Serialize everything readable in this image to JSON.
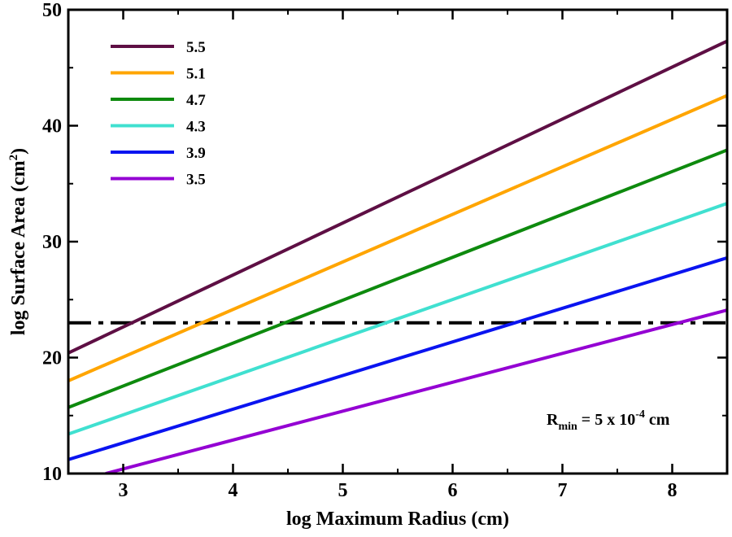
{
  "chart_data": {
    "type": "line",
    "xlabel": "log Maximum Radius (cm)",
    "ylabel_main": "log Surface Area (cm",
    "ylabel_sup": "2",
    "ylabel_close": ")",
    "xlim": [
      2.5,
      8.5
    ],
    "ylim": [
      10,
      50
    ],
    "xticks": [
      3,
      4,
      5,
      6,
      7,
      8
    ],
    "yticks": [
      10,
      20,
      30,
      40,
      50
    ],
    "grid": false,
    "legend_position": "top-left",
    "series": [
      {
        "name": "5.5",
        "color": "#5e0f44",
        "points": [
          [
            2.5,
            20.4
          ],
          [
            8.5,
            47.3
          ]
        ]
      },
      {
        "name": "5.1",
        "color": "#ffa500",
        "points": [
          [
            2.5,
            18.0
          ],
          [
            8.5,
            42.6
          ]
        ]
      },
      {
        "name": "4.7",
        "color": "#0e8a0e",
        "points": [
          [
            2.5,
            15.7
          ],
          [
            8.5,
            37.9
          ]
        ]
      },
      {
        "name": "4.3",
        "color": "#40e0d0",
        "points": [
          [
            2.5,
            13.4
          ],
          [
            8.5,
            33.3
          ]
        ]
      },
      {
        "name": "3.9",
        "color": "#0a14f0",
        "points": [
          [
            2.5,
            11.2
          ],
          [
            8.5,
            28.6
          ]
        ]
      },
      {
        "name": "3.5",
        "color": "#9400d3",
        "points": [
          [
            2.84,
            10.0
          ],
          [
            8.5,
            24.1
          ]
        ]
      }
    ],
    "reference_line": {
      "y": 23,
      "style": "dash-dot",
      "color": "#000000"
    },
    "annotation": {
      "r": "R",
      "sub": "min",
      "mid": " = 5 x 10",
      "sup": "-4",
      "tail": " cm"
    }
  }
}
